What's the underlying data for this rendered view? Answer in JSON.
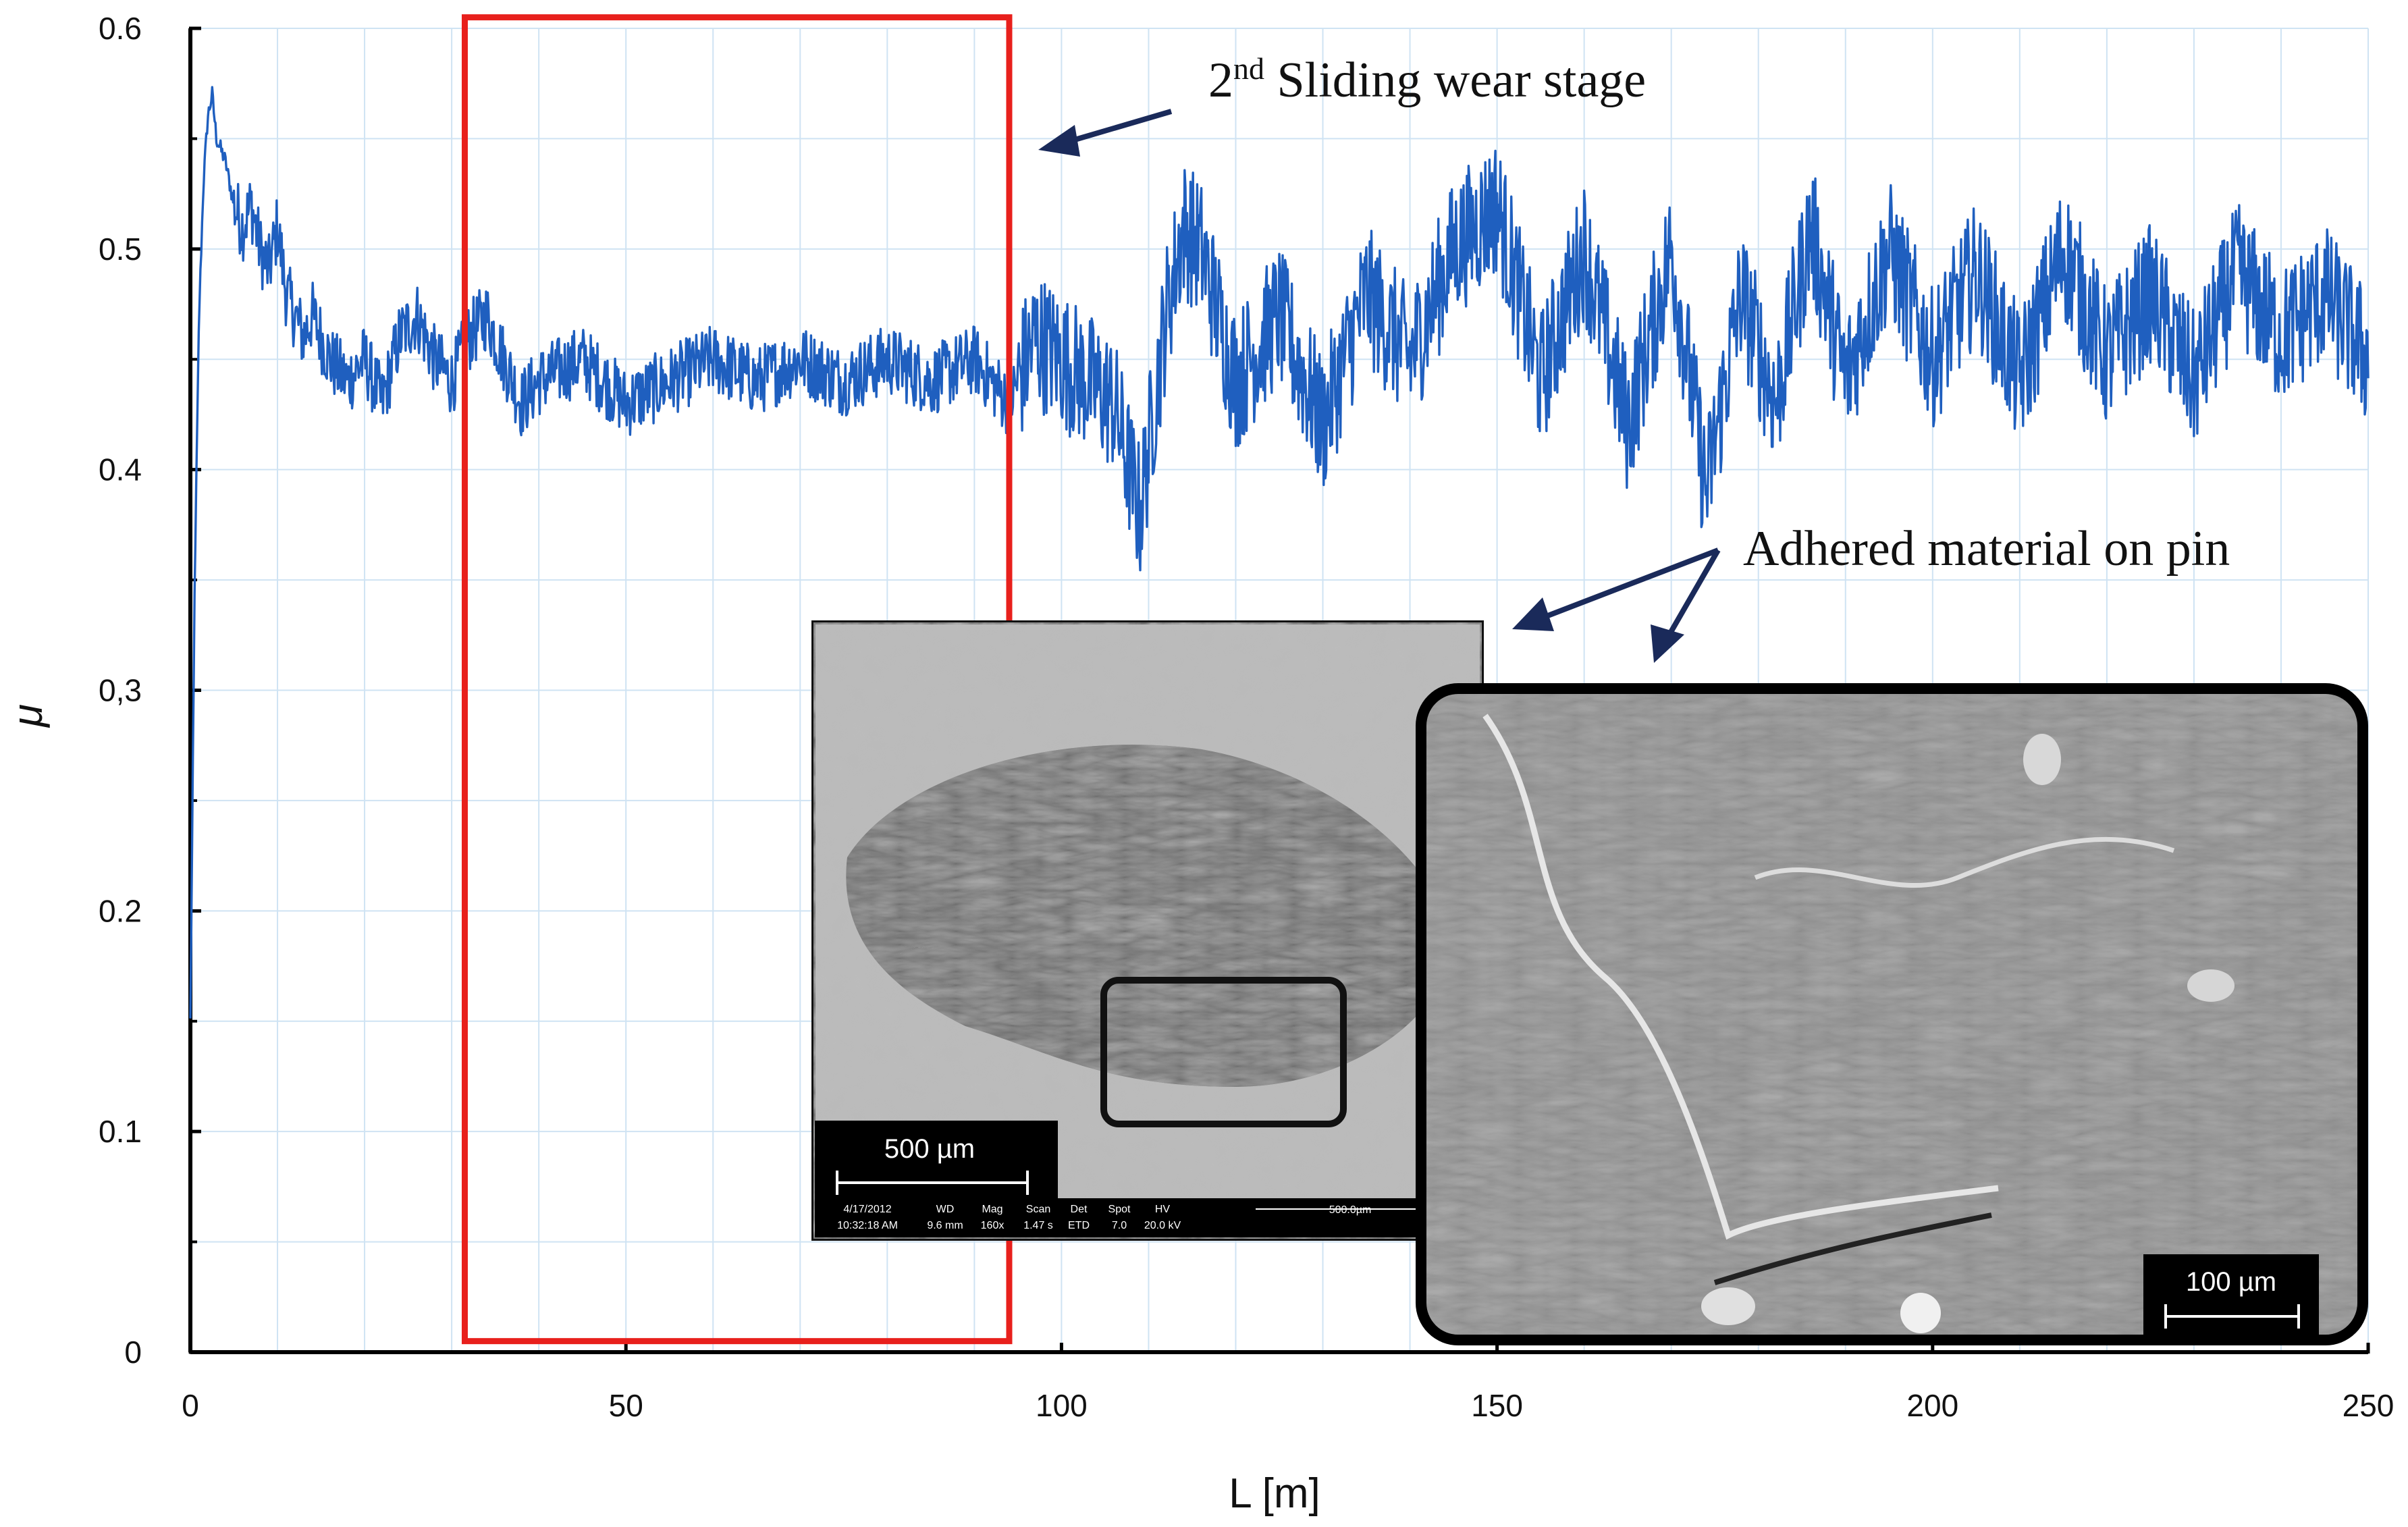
{
  "chart_data": {
    "type": "line",
    "title": "",
    "xlabel": "L [m]",
    "ylabel": "μ",
    "xlim": [
      0,
      250
    ],
    "ylim": [
      0,
      0.6
    ],
    "xticks": [
      0,
      50,
      100,
      150,
      200,
      250
    ],
    "yticks": [
      0,
      0.1,
      0.2,
      0.3,
      0.4,
      0.5,
      0.6
    ],
    "xtick_labels": [
      "0",
      "50",
      "100",
      "150",
      "200",
      "250"
    ],
    "ytick_labels": [
      "0",
      "0.1",
      "0.2",
      "0,3",
      "0.4",
      "0.5",
      "0.6"
    ],
    "grid": true,
    "line_color": "#1f5fbf",
    "highlight_color": "#e8201c",
    "series": [
      {
        "x": [
          0,
          0.5,
          1,
          1.5,
          2,
          2.5,
          3,
          4,
          5,
          6,
          7,
          8,
          9,
          10,
          11,
          12,
          13,
          14,
          15,
          16,
          18,
          20,
          22,
          24,
          26,
          28,
          30,
          32,
          34,
          36,
          38,
          40,
          45,
          50,
          55,
          60,
          65,
          70,
          75,
          80,
          85,
          90,
          94,
          97,
          100,
          103,
          106,
          109,
          112,
          114,
          116,
          120,
          125,
          130,
          135,
          140,
          145,
          150,
          155,
          160,
          165,
          170,
          174,
          178,
          182,
          186,
          190,
          195,
          200,
          205,
          210,
          215,
          220,
          225,
          230,
          235,
          240,
          245,
          250
        ],
        "y": [
          0.15,
          0.35,
          0.47,
          0.53,
          0.56,
          0.57,
          0.55,
          0.54,
          0.52,
          0.51,
          0.52,
          0.5,
          0.49,
          0.51,
          0.48,
          0.47,
          0.46,
          0.47,
          0.46,
          0.45,
          0.44,
          0.45,
          0.43,
          0.46,
          0.47,
          0.45,
          0.44,
          0.46,
          0.47,
          0.45,
          0.43,
          0.44,
          0.45,
          0.43,
          0.44,
          0.45,
          0.44,
          0.45,
          0.44,
          0.45,
          0.44,
          0.45,
          0.43,
          0.46,
          0.45,
          0.44,
          0.43,
          0.38,
          0.47,
          0.51,
          0.5,
          0.44,
          0.47,
          0.42,
          0.48,
          0.45,
          0.5,
          0.52,
          0.44,
          0.5,
          0.42,
          0.5,
          0.39,
          0.48,
          0.43,
          0.51,
          0.44,
          0.5,
          0.45,
          0.49,
          0.44,
          0.5,
          0.45,
          0.48,
          0.44,
          0.49,
          0.46,
          0.48,
          0.45
        ]
      }
    ],
    "highlight_range": {
      "x": [
        31.5,
        94
      ],
      "y": [
        0.005,
        0.605
      ]
    },
    "annotations": [
      {
        "text_pre": "2",
        "text_sup": "nd",
        "text_post": " Sliding wear stage"
      },
      {
        "text": "Adhered material on pin"
      }
    ],
    "insets": [
      {
        "scale_label": "500 µm",
        "meta": [
          "4/17/2012",
          "WD",
          "Mag",
          "Scan",
          "Det",
          "Spot",
          "HV"
        ],
        "meta2": [
          "10:32:18 AM",
          "9.6 mm",
          "160x",
          "1.47 s",
          "ETD",
          "7.0",
          "20.0 kV"
        ],
        "meta_scale": "500.0µm"
      },
      {
        "scale_label": "100 µm"
      }
    ]
  }
}
